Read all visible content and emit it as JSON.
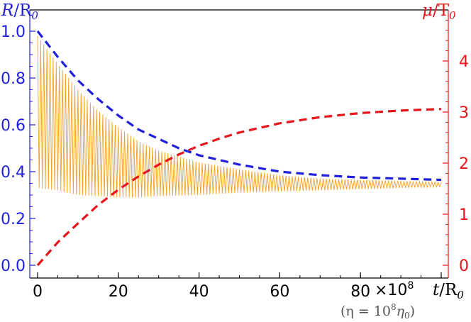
{
  "chart_data": {
    "type": "line",
    "left_axis": {
      "label_main": "R",
      "label_sub": "0",
      "label_slash": "/R",
      "color": "#1f1fdc",
      "ylim": [
        0,
        1.0
      ],
      "ticks": [
        "0.0",
        "0.2",
        "0.4",
        "0.6",
        "0.8",
        "1.0"
      ]
    },
    "right_axis": {
      "label_main": "μ",
      "label_slash": "/T",
      "label_sub": "0",
      "color": "#e8141b",
      "ylim": [
        0,
        4.8
      ],
      "ticks": [
        "0",
        "1",
        "2",
        "3",
        "4"
      ]
    },
    "x_axis": {
      "label_main": "t",
      "label_slash": "/R",
      "label_sub": "0",
      "xlim": [
        0,
        100
      ],
      "ticks": [
        "0",
        "20",
        "40",
        "60",
        "80"
      ],
      "multiplier": "×10",
      "multiplier_exp": "8",
      "note_prefix": "(η = 10",
      "note_exp": "8",
      "note_suffix": "η",
      "note_sub": "0",
      "note_close": ")"
    },
    "series": [
      {
        "axis": "left",
        "style": "dashed",
        "color": "#1f1fdc",
        "x": [
          0,
          5,
          10,
          15,
          20,
          25,
          30,
          35,
          40,
          45,
          50,
          60,
          70,
          80,
          90,
          100
        ],
        "y": [
          1.0,
          0.89,
          0.79,
          0.71,
          0.64,
          0.58,
          0.54,
          0.5,
          0.47,
          0.45,
          0.43,
          0.4,
          0.385,
          0.375,
          0.37,
          0.365
        ]
      },
      {
        "axis": "right",
        "style": "dashed",
        "color": "#e8141b",
        "x": [
          0,
          5,
          10,
          15,
          20,
          25,
          30,
          35,
          40,
          45,
          50,
          60,
          70,
          80,
          90,
          100
        ],
        "y": [
          0,
          0.45,
          0.82,
          1.18,
          1.48,
          1.74,
          1.97,
          2.17,
          2.34,
          2.48,
          2.6,
          2.78,
          2.9,
          2.98,
          3.03,
          3.06
        ]
      },
      {
        "axis": "left",
        "style": "oscillating",
        "color": "#f4a020",
        "x": [
          0,
          5,
          10,
          15,
          20,
          25,
          30,
          40,
          50,
          60,
          70,
          80,
          90,
          100
        ],
        "upper": [
          0.98,
          0.86,
          0.75,
          0.66,
          0.59,
          0.53,
          0.49,
          0.44,
          0.41,
          0.385,
          0.37,
          0.365,
          0.36,
          0.355
        ],
        "lower": [
          0.33,
          0.32,
          0.3,
          0.295,
          0.29,
          0.29,
          0.295,
          0.3,
          0.31,
          0.315,
          0.32,
          0.325,
          0.33,
          0.335
        ]
      }
    ]
  }
}
